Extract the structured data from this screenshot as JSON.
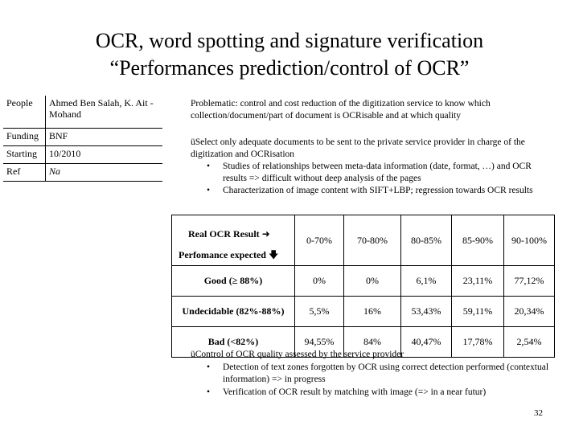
{
  "title": {
    "line1": "OCR, word spotting and signature verification",
    "line2": "“Performances prediction/control of OCR”"
  },
  "info": [
    {
      "key": "People",
      "value": "Ahmed Ben Salah, K. Ait -Mohand"
    },
    {
      "key": "Funding",
      "value": "BNF"
    },
    {
      "key": "Starting",
      "value": "10/2010"
    },
    {
      "key": "Ref",
      "value": "Na"
    }
  ],
  "problematic": "Problematic: control and cost reduction of the digitization service to know which collection/document/part of document is OCRisable and at which quality",
  "selection": {
    "lead": "üSelect only adequate documents to be sent to the private service provider in charge of the digitization and OCRisation",
    "bullets": [
      "Studies of relationships between meta-data information (date, format, …) and OCR results => difficult without deep analysis of the pages",
      "Characterization of image content with SIFT+LBP; regression towards OCR results"
    ]
  },
  "results": {
    "header_real": "Real OCR Result",
    "header_expected": "Perfomance expected",
    "columns": [
      "0-70%",
      "70-80%",
      "80-85%",
      "85-90%",
      "90-100%"
    ],
    "rows": [
      {
        "label": "Good (≥ 88%)",
        "cells": [
          "0%",
          "0%",
          "6,1%",
          "23,11%",
          "77,12%"
        ]
      },
      {
        "label": "Undecidable (82%-88%)",
        "cells": [
          "5,5%",
          "16%",
          "53,43%",
          "59,11%",
          "20,34%"
        ]
      },
      {
        "label": "Bad (<82%)",
        "cells": [
          "94,55%",
          "84%",
          "40,47%",
          "17,78%",
          "2,54%"
        ]
      }
    ]
  },
  "control": {
    "lead": "üControl of OCR quality assessed by the service provider",
    "bullets": [
      "Detection of text zones forgotten by OCR using correct detection performed (contextual information) => in progress",
      "Verification of OCR result by matching with image (=> in a near futur)"
    ]
  },
  "page_number": "32"
}
